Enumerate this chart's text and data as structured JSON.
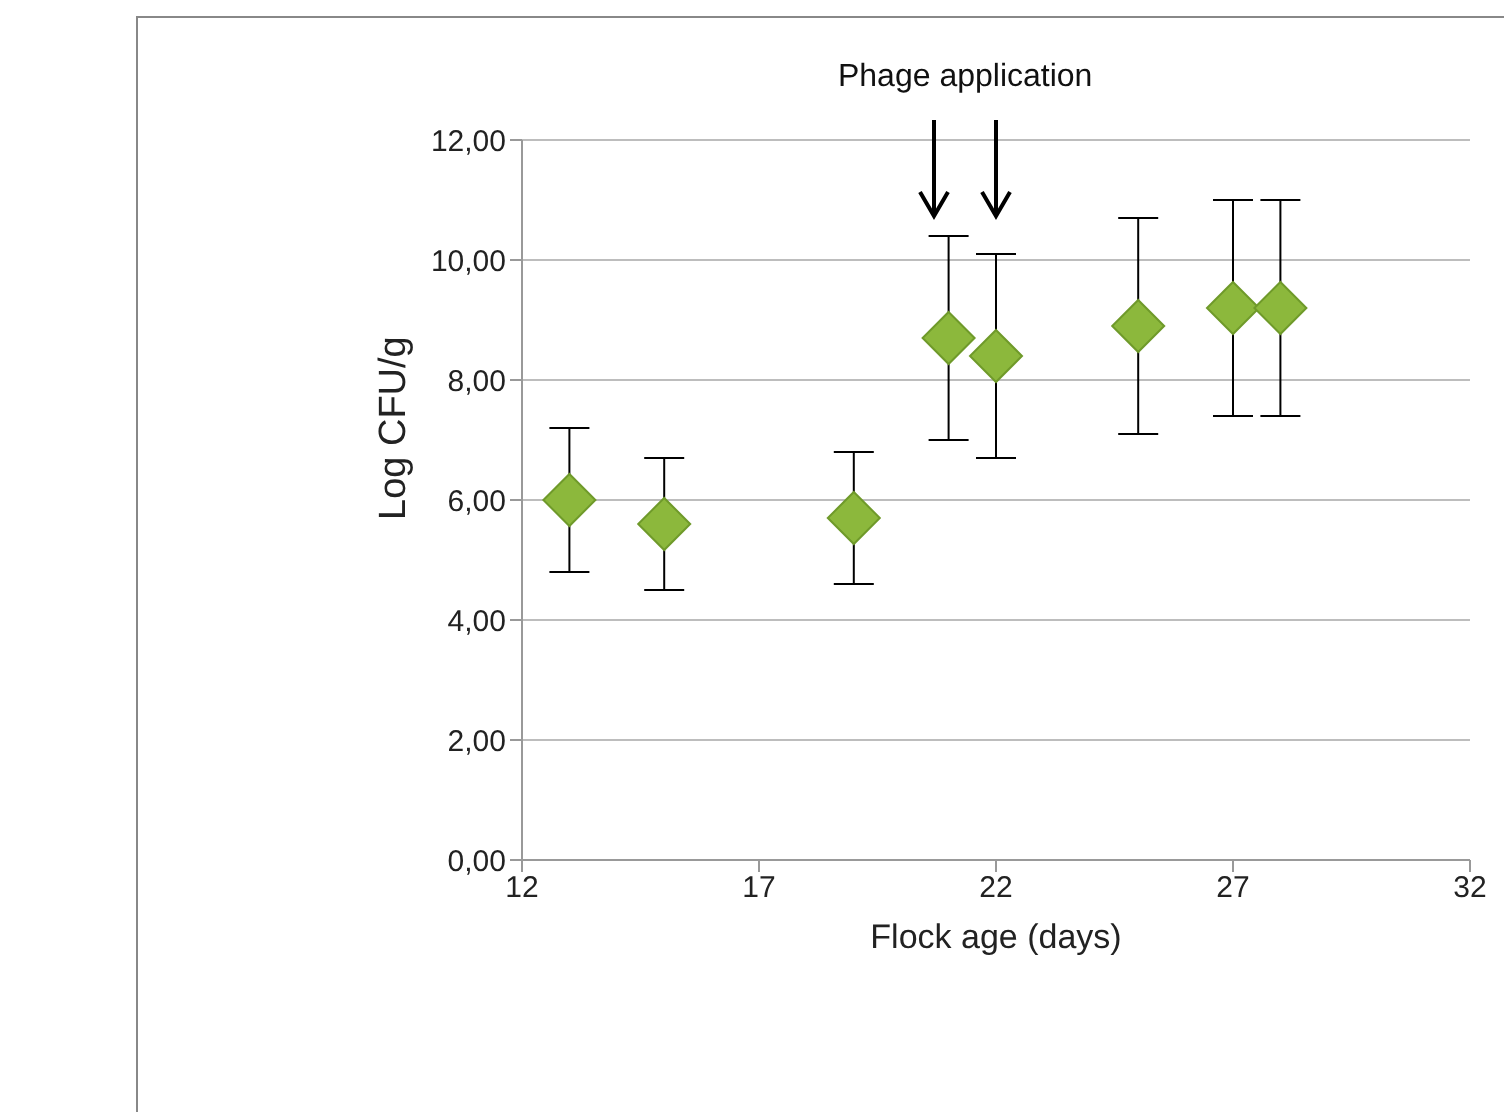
{
  "chart_data": {
    "type": "scatter",
    "xlabel": "Flock age (days)",
    "ylabel": "Log CFU/g",
    "annotations": [
      "Phage application"
    ],
    "x": [
      13,
      15,
      19,
      21,
      22,
      25,
      27,
      28
    ],
    "series": [
      {
        "color": "#8cb83c",
        "values": [
          6.0,
          5.6,
          5.7,
          8.7,
          8.4,
          8.9,
          9.2,
          9.2
        ],
        "errors": [
          1.2,
          1.1,
          1.1,
          1.7,
          1.7,
          1.8,
          1.8,
          1.8
        ]
      }
    ],
    "xlim": [
      12,
      32
    ],
    "xticks": [
      12,
      17,
      22,
      27,
      32
    ],
    "ylim": [
      0,
      12
    ],
    "yticks": [
      {
        "value": 0,
        "label": "0,00"
      },
      {
        "value": 2,
        "label": "2,00"
      },
      {
        "value": 4,
        "label": "4,00"
      },
      {
        "value": 6,
        "label": "6,00"
      },
      {
        "value": 8,
        "label": "8,00"
      },
      {
        "value": 10,
        "label": "10,00"
      },
      {
        "value": 12,
        "label": "12,00"
      }
    ],
    "grid": "y",
    "marker": "diamond",
    "legend": false
  }
}
